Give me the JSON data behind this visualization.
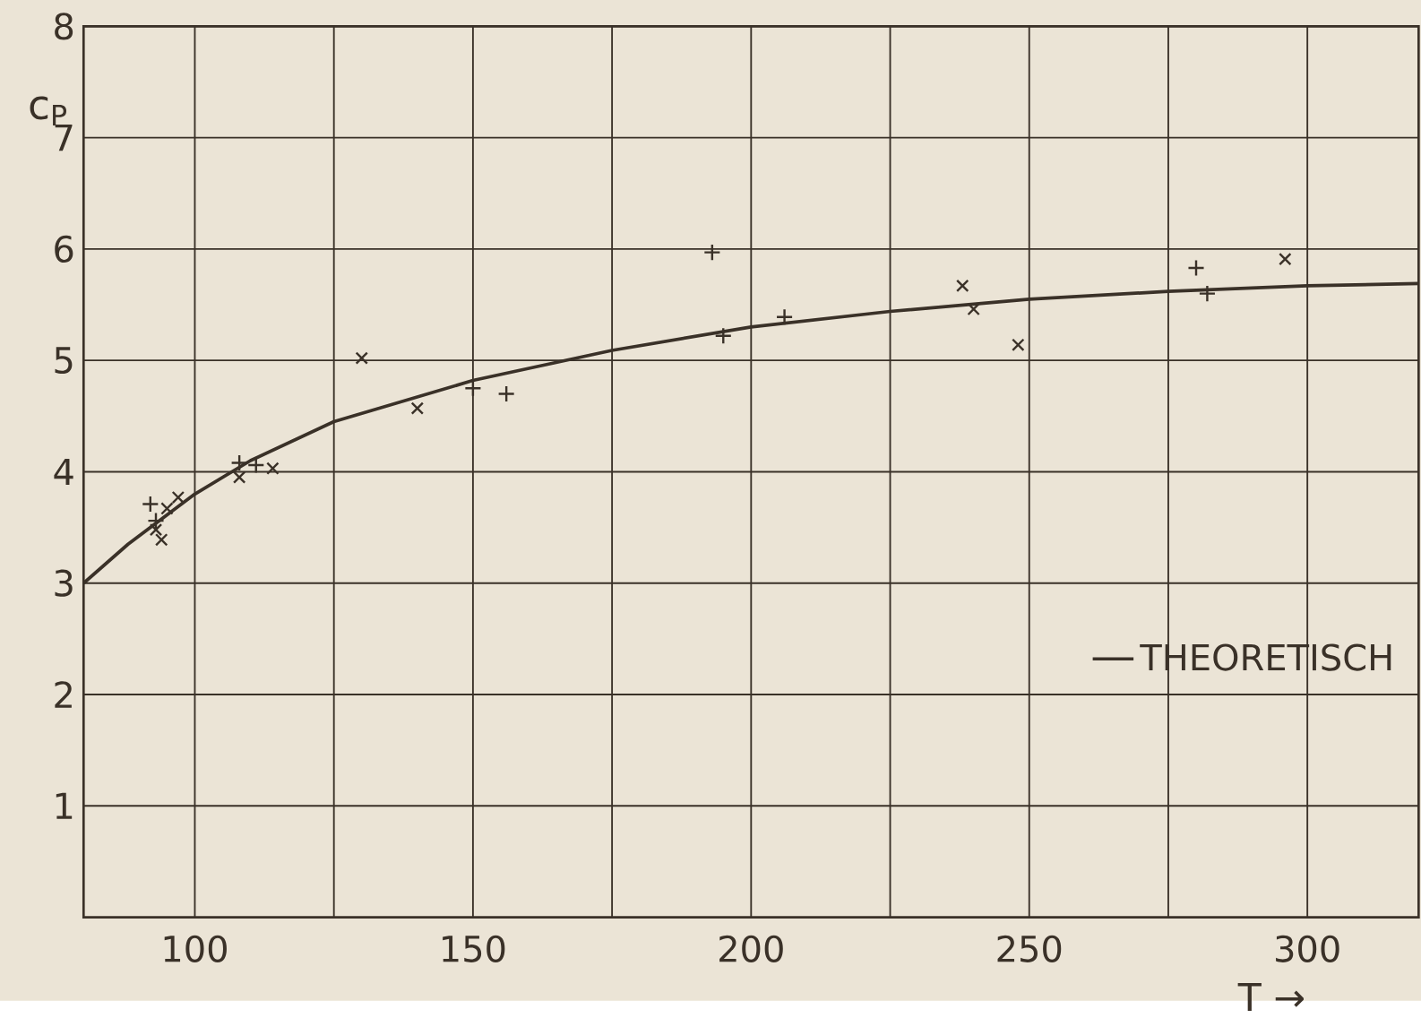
{
  "chart_data": {
    "type": "scatter",
    "xlabel": "T →",
    "ylabel": "c$_{P}$",
    "xlim": [
      80,
      320
    ],
    "ylim": [
      0,
      8
    ],
    "xticks": [
      100,
      {
        "value": 125,
        "label": null
      },
      150,
      {
        "value": 175,
        "label": null
      },
      200,
      {
        "value": 225,
        "label": null
      },
      250,
      {
        "value": 275,
        "label": null
      },
      300
    ],
    "yticks": [
      1,
      2,
      3,
      4,
      5,
      6,
      7,
      8
    ],
    "grid": true,
    "legend": "bottom right",
    "series": [
      {
        "name": "THEORETISCH",
        "type": "line",
        "color": "#3a3128",
        "x": [
          80,
          88,
          100,
          110,
          125,
          150,
          175,
          200,
          225,
          250,
          275,
          300,
          320
        ],
        "values": [
          3.0,
          3.35,
          3.8,
          4.1,
          4.45,
          4.82,
          5.09,
          5.3,
          5.44,
          5.55,
          5.62,
          5.67,
          5.69
        ]
      },
      {
        "marker": "plus",
        "color": "#3a3128",
        "x": [
          92,
          93,
          108,
          111,
          150,
          156,
          193,
          195,
          206,
          280,
          282
        ],
        "values": [
          3.71,
          3.56,
          4.08,
          4.06,
          4.75,
          4.7,
          5.97,
          5.22,
          5.39,
          5.83,
          5.6
        ]
      },
      {
        "marker": "cross",
        "color": "#3a3128",
        "x": [
          93,
          94,
          95,
          97,
          108,
          114,
          130,
          140,
          238,
          240,
          248,
          296
        ],
        "values": [
          3.48,
          3.39,
          3.67,
          3.77,
          3.95,
          4.03,
          5.02,
          4.57,
          5.67,
          5.46,
          5.14,
          5.91
        ]
      }
    ]
  }
}
